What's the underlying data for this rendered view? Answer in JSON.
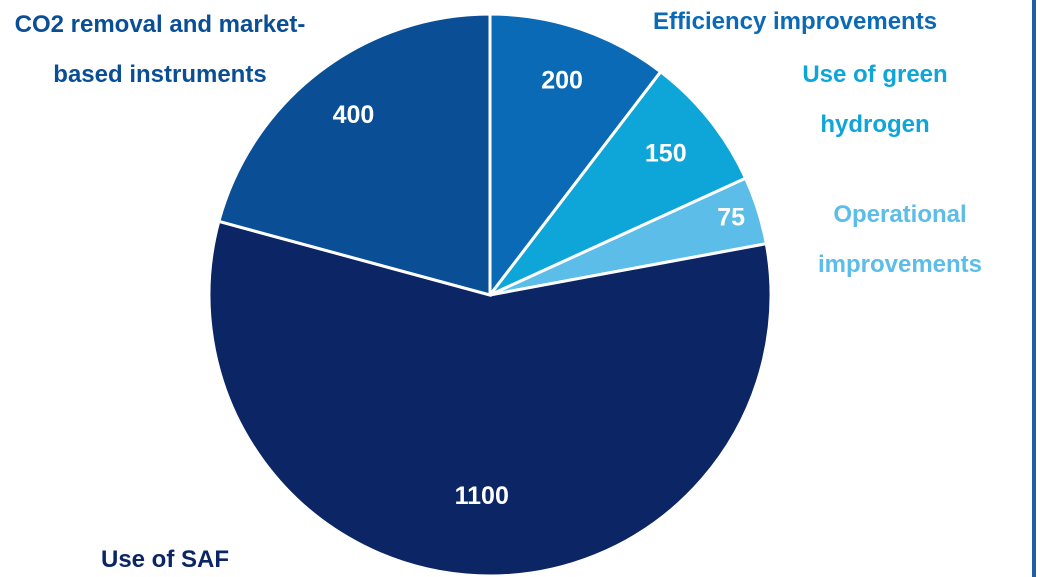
{
  "chart_data": {
    "type": "pie",
    "categories": [
      "Efficiency improvements",
      "Use of green hydrogen",
      "Operational improvements",
      "Use of SAF",
      "CO2 removal and market-based instruments"
    ],
    "values": [
      200,
      150,
      75,
      1100,
      400
    ],
    "colors": [
      "#0a6ab6",
      "#0ea5d9",
      "#5bbde8",
      "#0b2565",
      "#0a4f96"
    ]
  }
}
